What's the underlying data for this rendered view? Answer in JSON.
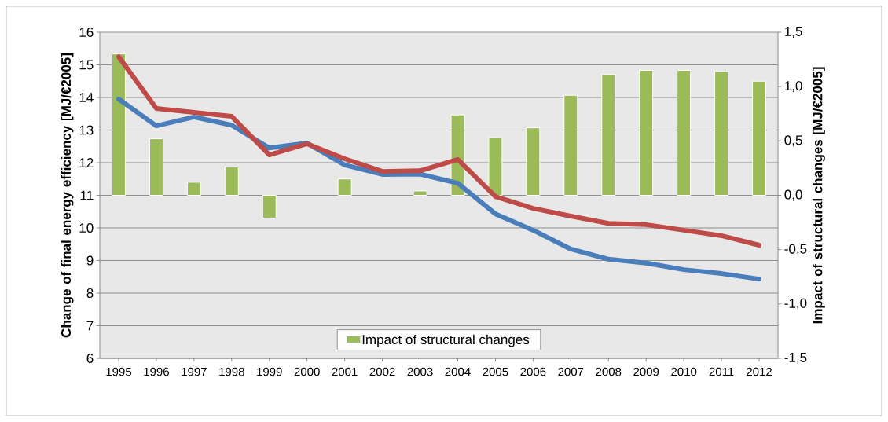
{
  "chart_data": {
    "type": "line",
    "categories": [
      "1995",
      "1996",
      "1997",
      "1998",
      "1999",
      "2000",
      "2001",
      "2002",
      "2003",
      "2004",
      "2005",
      "2006",
      "2007",
      "2008",
      "2009",
      "2010",
      "2011",
      "2012"
    ],
    "series": [
      {
        "color": "#4a7ebb",
        "values": [
          13.95,
          13.13,
          13.4,
          13.15,
          12.45,
          12.6,
          11.93,
          11.64,
          11.65,
          11.37,
          10.43,
          9.93,
          9.35,
          9.04,
          8.92,
          8.72,
          8.6,
          8.43
        ]
      },
      {
        "color": "#be4b48",
        "values": [
          15.25,
          13.66,
          13.54,
          13.42,
          12.24,
          12.58,
          12.12,
          11.73,
          11.75,
          12.1,
          10.96,
          10.6,
          10.36,
          10.14,
          10.1,
          9.93,
          9.76,
          9.47
        ]
      },
      {
        "type": "bar",
        "axis": "y2",
        "name": "Impact of structural changes",
        "color": "#9bbb59",
        "values": [
          1.3,
          0.52,
          0.12,
          0.26,
          -0.21,
          null,
          0.15,
          null,
          0.04,
          0.74,
          0.53,
          0.62,
          0.92,
          1.11,
          1.15,
          1.15,
          1.14,
          1.05
        ]
      }
    ],
    "ylabel": "Change of final energy efficiency [MJ/€2005]",
    "y2label": "Impact of structural changes [MJ/€2005]",
    "ylim": [
      6,
      16
    ],
    "yticks": [
      6,
      7,
      8,
      9,
      10,
      11,
      12,
      13,
      14,
      15,
      16
    ],
    "y2lim": [
      -1.5,
      1.5
    ],
    "y2ticks": [
      {
        "value": -1.5,
        "label": "-1,5"
      },
      {
        "value": -1.0,
        "label": "-1,0"
      },
      {
        "value": -0.5,
        "label": "-0,5"
      },
      {
        "value": 0,
        "label": "0,0"
      },
      {
        "value": 0.5,
        "label": "0,5"
      },
      {
        "value": 1.0,
        "label": "1,0"
      },
      {
        "value": 1.5,
        "label": "1,5"
      }
    ],
    "grid": "y",
    "legend": "bottom"
  }
}
